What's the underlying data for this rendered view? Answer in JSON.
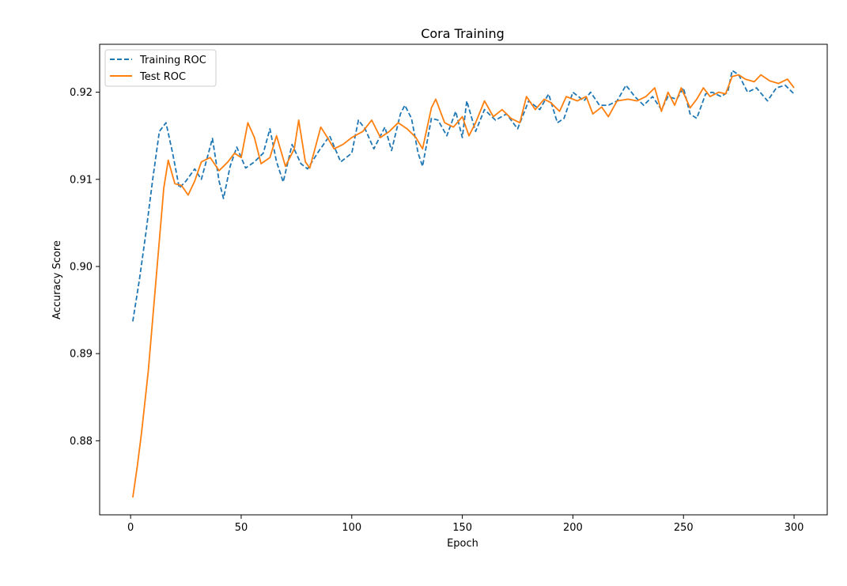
{
  "chart_data": {
    "type": "line",
    "title": "Cora Training",
    "xlabel": "Epoch",
    "ylabel": "Accuracy Score",
    "xlim": [
      -14,
      315
    ],
    "ylim": [
      0.8715,
      0.9255
    ],
    "xticks": [
      0,
      50,
      100,
      150,
      200,
      250,
      300
    ],
    "yticks": [
      0.88,
      0.89,
      0.9,
      0.91,
      0.92
    ],
    "ytick_labels": [
      "0.88",
      "0.89",
      "0.90",
      "0.91",
      "0.92"
    ],
    "grid": false,
    "legend_position": "top-left",
    "series": [
      {
        "name": "Training ROC",
        "color": "#1f77b4",
        "dash": "dashed",
        "points": [
          [
            1,
            0.8937
          ],
          [
            4,
            0.8985
          ],
          [
            7,
            0.904
          ],
          [
            10,
            0.91
          ],
          [
            13,
            0.9155
          ],
          [
            16,
            0.9165
          ],
          [
            19,
            0.913
          ],
          [
            22,
            0.909
          ],
          [
            25,
            0.9098
          ],
          [
            29,
            0.9112
          ],
          [
            32,
            0.91
          ],
          [
            35,
            0.9128
          ],
          [
            37,
            0.9147
          ],
          [
            40,
            0.9098
          ],
          [
            42,
            0.9078
          ],
          [
            45,
            0.9115
          ],
          [
            48,
            0.9137
          ],
          [
            52,
            0.9113
          ],
          [
            56,
            0.912
          ],
          [
            60,
            0.913
          ],
          [
            63,
            0.9158
          ],
          [
            66,
            0.912
          ],
          [
            69,
            0.9097
          ],
          [
            73,
            0.914
          ],
          [
            77,
            0.9118
          ],
          [
            80,
            0.9112
          ],
          [
            85,
            0.9132
          ],
          [
            90,
            0.915
          ],
          [
            95,
            0.912
          ],
          [
            100,
            0.913
          ],
          [
            103,
            0.9168
          ],
          [
            106,
            0.9158
          ],
          [
            110,
            0.9135
          ],
          [
            115,
            0.916
          ],
          [
            118,
            0.9133
          ],
          [
            122,
            0.9175
          ],
          [
            124,
            0.9185
          ],
          [
            127,
            0.917
          ],
          [
            130,
            0.913
          ],
          [
            132,
            0.9115
          ],
          [
            136,
            0.917
          ],
          [
            139,
            0.9168
          ],
          [
            143,
            0.915
          ],
          [
            147,
            0.9178
          ],
          [
            150,
            0.9148
          ],
          [
            152,
            0.919
          ],
          [
            156,
            0.9155
          ],
          [
            160,
            0.918
          ],
          [
            165,
            0.9168
          ],
          [
            170,
            0.9175
          ],
          [
            175,
            0.9158
          ],
          [
            180,
            0.919
          ],
          [
            185,
            0.918
          ],
          [
            189,
            0.9198
          ],
          [
            193,
            0.9165
          ],
          [
            196,
            0.917
          ],
          [
            200,
            0.92
          ],
          [
            205,
            0.919
          ],
          [
            208,
            0.92
          ],
          [
            212,
            0.9185
          ],
          [
            216,
            0.9185
          ],
          [
            220,
            0.919
          ],
          [
            224,
            0.9208
          ],
          [
            228,
            0.9195
          ],
          [
            232,
            0.9185
          ],
          [
            236,
            0.9195
          ],
          [
            240,
            0.918
          ],
          [
            243,
            0.9195
          ],
          [
            247,
            0.9192
          ],
          [
            250,
            0.9205
          ],
          [
            253,
            0.9175
          ],
          [
            256,
            0.917
          ],
          [
            260,
            0.9198
          ],
          [
            263,
            0.92
          ],
          [
            267,
            0.9195
          ],
          [
            270,
            0.92
          ],
          [
            272,
            0.9225
          ],
          [
            275,
            0.922
          ],
          [
            279,
            0.92
          ],
          [
            283,
            0.9205
          ],
          [
            288,
            0.919
          ],
          [
            292,
            0.9205
          ],
          [
            296,
            0.9208
          ],
          [
            300,
            0.9198
          ]
        ]
      },
      {
        "name": "Test ROC",
        "color": "#ff7f0e",
        "dash": "solid",
        "points": [
          [
            1,
            0.8735
          ],
          [
            3,
            0.877
          ],
          [
            5,
            0.881
          ],
          [
            8,
            0.888
          ],
          [
            10,
            0.894
          ],
          [
            13,
            0.903
          ],
          [
            15,
            0.909
          ],
          [
            17,
            0.9122
          ],
          [
            20,
            0.9095
          ],
          [
            23,
            0.9093
          ],
          [
            26,
            0.9082
          ],
          [
            29,
            0.9098
          ],
          [
            32,
            0.912
          ],
          [
            36,
            0.9125
          ],
          [
            40,
            0.911
          ],
          [
            44,
            0.912
          ],
          [
            47,
            0.913
          ],
          [
            50,
            0.9125
          ],
          [
            53,
            0.9165
          ],
          [
            56,
            0.9148
          ],
          [
            59,
            0.9118
          ],
          [
            63,
            0.9125
          ],
          [
            66,
            0.915
          ],
          [
            70,
            0.9115
          ],
          [
            74,
            0.9135
          ],
          [
            76,
            0.9168
          ],
          [
            79,
            0.912
          ],
          [
            81,
            0.9113
          ],
          [
            86,
            0.916
          ],
          [
            89,
            0.9148
          ],
          [
            92,
            0.9135
          ],
          [
            96,
            0.914
          ],
          [
            100,
            0.9148
          ],
          [
            105,
            0.9155
          ],
          [
            109,
            0.9168
          ],
          [
            113,
            0.9148
          ],
          [
            117,
            0.9155
          ],
          [
            121,
            0.9165
          ],
          [
            125,
            0.9158
          ],
          [
            129,
            0.9148
          ],
          [
            132,
            0.9135
          ],
          [
            136,
            0.9182
          ],
          [
            138,
            0.9192
          ],
          [
            142,
            0.9165
          ],
          [
            146,
            0.916
          ],
          [
            150,
            0.9172
          ],
          [
            153,
            0.915
          ],
          [
            156,
            0.9165
          ],
          [
            160,
            0.919
          ],
          [
            164,
            0.9172
          ],
          [
            168,
            0.918
          ],
          [
            172,
            0.917
          ],
          [
            176,
            0.9165
          ],
          [
            179,
            0.9195
          ],
          [
            183,
            0.918
          ],
          [
            187,
            0.9192
          ],
          [
            190,
            0.9188
          ],
          [
            194,
            0.9178
          ],
          [
            197,
            0.9195
          ],
          [
            202,
            0.919
          ],
          [
            206,
            0.9195
          ],
          [
            209,
            0.9175
          ],
          [
            213,
            0.9183
          ],
          [
            216,
            0.9172
          ],
          [
            220,
            0.919
          ],
          [
            225,
            0.9192
          ],
          [
            229,
            0.919
          ],
          [
            233,
            0.9195
          ],
          [
            237,
            0.9205
          ],
          [
            240,
            0.9178
          ],
          [
            243,
            0.92
          ],
          [
            246,
            0.9185
          ],
          [
            249,
            0.9205
          ],
          [
            253,
            0.9182
          ],
          [
            256,
            0.9192
          ],
          [
            259,
            0.9205
          ],
          [
            262,
            0.9195
          ],
          [
            266,
            0.92
          ],
          [
            269,
            0.9198
          ],
          [
            272,
            0.9218
          ],
          [
            275,
            0.922
          ],
          [
            278,
            0.9215
          ],
          [
            282,
            0.9212
          ],
          [
            285,
            0.922
          ],
          [
            289,
            0.9213
          ],
          [
            293,
            0.921
          ],
          [
            297,
            0.9215
          ],
          [
            300,
            0.9205
          ]
        ]
      }
    ]
  }
}
